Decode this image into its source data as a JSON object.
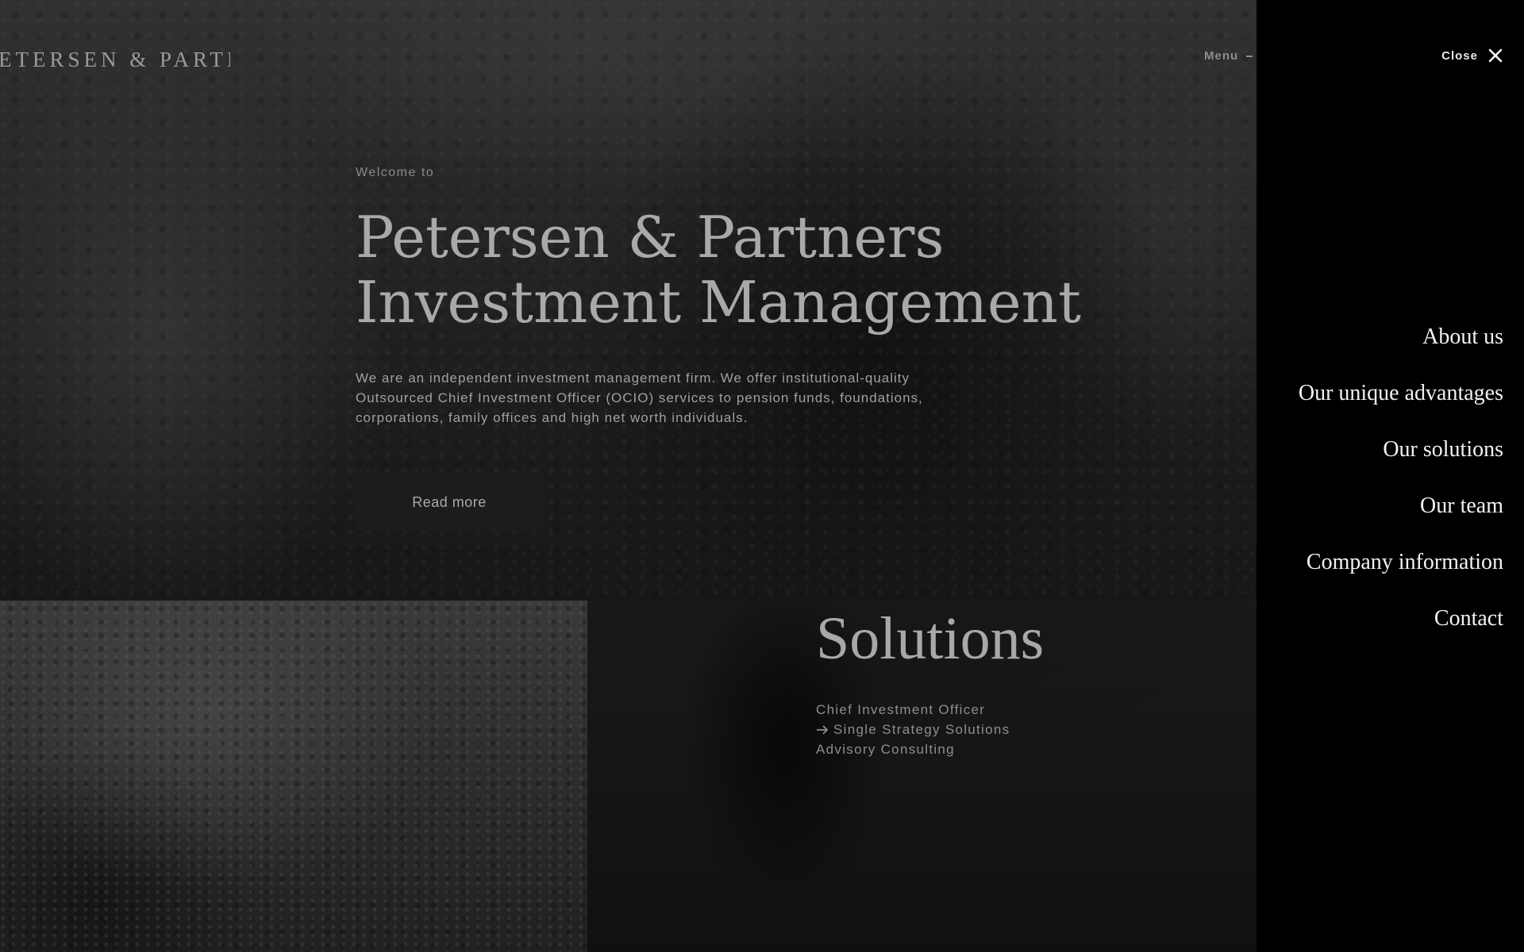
{
  "header": {
    "logo_text": "PETERSEN & PARTNERS",
    "menu_label": "Menu"
  },
  "hero": {
    "welcome": "Welcome to",
    "title": "Petersen & Partners Investment Management",
    "description": "We are an independent investment management firm. We offer institutional-quality Outsourced Chief Investment Officer (OCIO) services to pension funds, foundations, corporations, family offices and high net worth individuals.",
    "button_label": "Read more"
  },
  "solutions": {
    "title": "Solutions",
    "items": [
      {
        "label": "Chief Investment Officer",
        "active": false
      },
      {
        "label": "Single Strategy Solutions",
        "active": true,
        "icon": "arrow-right-icon"
      },
      {
        "label": "Advisory Consulting",
        "active": false
      }
    ]
  },
  "side_menu": {
    "close_label": "Close",
    "items": [
      {
        "label": "About us"
      },
      {
        "label": "Our unique advantages"
      },
      {
        "label": "Our solutions"
      },
      {
        "label": "Our team"
      },
      {
        "label": "Company information"
      },
      {
        "label": "Contact"
      }
    ]
  },
  "colors": {
    "panel_background": "#000000",
    "overlay": "#000000",
    "button_background": "#1c1c1c",
    "menu_text": "#f2f2f2"
  }
}
